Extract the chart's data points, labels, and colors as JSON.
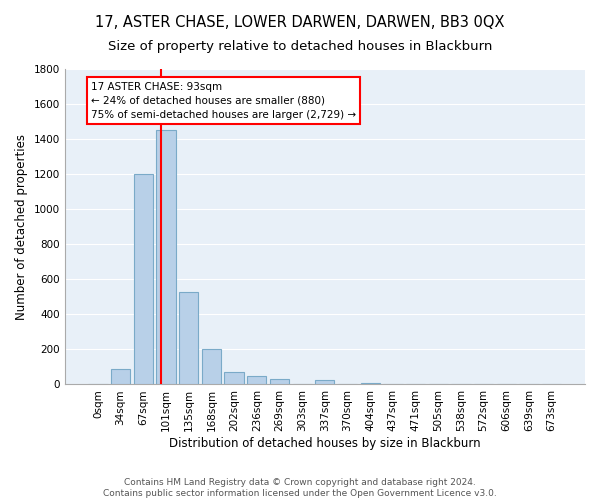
{
  "title": "17, ASTER CHASE, LOWER DARWEN, DARWEN, BB3 0QX",
  "subtitle": "Size of property relative to detached houses in Blackburn",
  "xlabel": "Distribution of detached houses by size in Blackburn",
  "ylabel": "Number of detached properties",
  "footer_line1": "Contains HM Land Registry data © Crown copyright and database right 2024.",
  "footer_line2": "Contains public sector information licensed under the Open Government Licence v3.0.",
  "bar_labels": [
    "0sqm",
    "34sqm",
    "67sqm",
    "101sqm",
    "135sqm",
    "168sqm",
    "202sqm",
    "236sqm",
    "269sqm",
    "303sqm",
    "337sqm",
    "370sqm",
    "404sqm",
    "437sqm",
    "471sqm",
    "505sqm",
    "538sqm",
    "572sqm",
    "606sqm",
    "639sqm",
    "673sqm"
  ],
  "bar_values": [
    0,
    90,
    1200,
    1450,
    530,
    205,
    70,
    48,
    30,
    0,
    25,
    0,
    10,
    0,
    0,
    0,
    0,
    0,
    0,
    0,
    0
  ],
  "bar_color": "#b8d0e8",
  "bar_edge_color": "#7aaac8",
  "vline_x_index": 2.77,
  "vline_color": "red",
  "annotation_line1": "17 ASTER CHASE: 93sqm",
  "annotation_line2": "← 24% of detached houses are smaller (880)",
  "annotation_line3": "75% of semi-detached houses are larger (2,729) →",
  "ylim": [
    0,
    1800
  ],
  "yticks": [
    0,
    200,
    400,
    600,
    800,
    1000,
    1200,
    1400,
    1600,
    1800
  ],
  "bg_color": "#ffffff",
  "plot_bg_color": "#e8f0f8",
  "grid_color": "#ffffff",
  "title_fontsize": 10.5,
  "subtitle_fontsize": 9.5,
  "axis_label_fontsize": 8.5,
  "tick_fontsize": 7.5,
  "footer_fontsize": 6.5
}
